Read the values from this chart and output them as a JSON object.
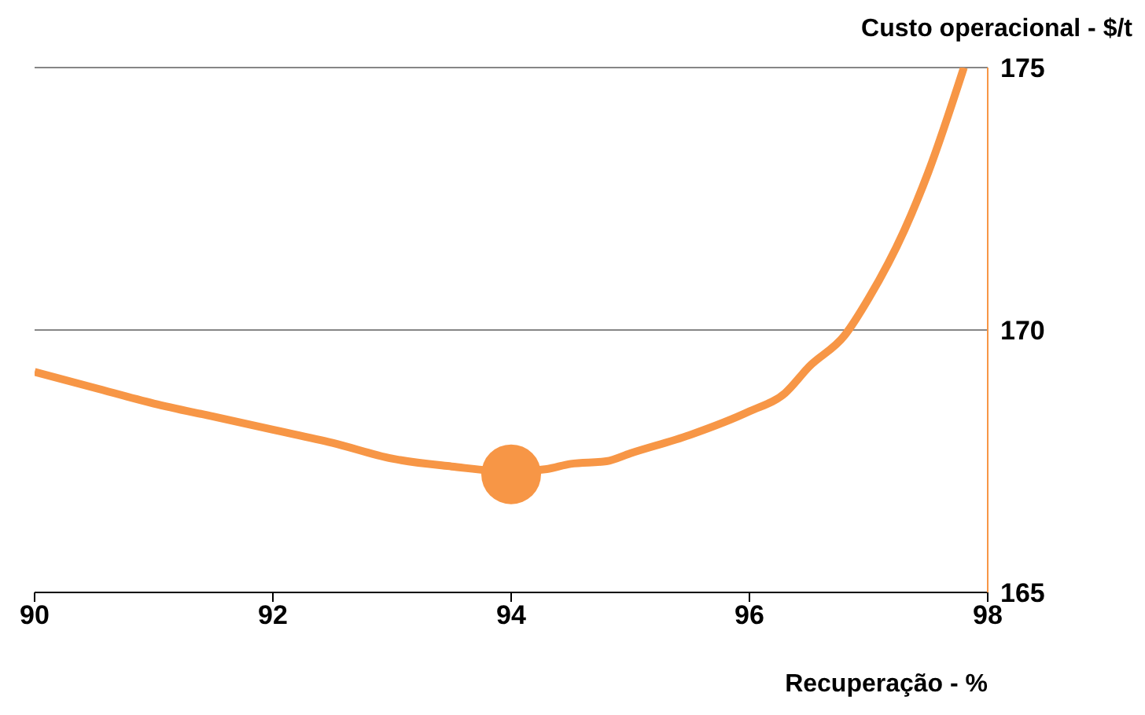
{
  "chart_data": {
    "type": "line",
    "xlabel": "Recuperação - %",
    "ylabel": "Custo operacional - $/t",
    "series": [
      {
        "type": "line",
        "color": "#f79646",
        "x": [
          90,
          90.5,
          91,
          91.5,
          92,
          92.5,
          93,
          93.5,
          94,
          94.3,
          94.5,
          94.8,
          95,
          95.5,
          96,
          96.3,
          96.5,
          96.8,
          97,
          97.3,
          97.5,
          97.8
        ],
        "values": [
          169.2,
          168.9,
          168.6,
          168.35,
          168.1,
          167.85,
          167.55,
          167.4,
          167.3,
          167.35,
          167.45,
          167.5,
          167.65,
          168.0,
          168.45,
          168.8,
          169.3,
          169.9,
          170.6,
          171.9,
          173.0,
          175
        ]
      },
      {
        "type": "scatter",
        "color": "#f79646",
        "marker": "circle",
        "x": [
          94
        ],
        "values": [
          167.25
        ]
      }
    ],
    "xlim": [
      90,
      98
    ],
    "xticks": [
      90,
      92,
      94,
      96,
      98
    ],
    "ylim": [
      165,
      175
    ],
    "yticks": [
      165,
      170,
      175
    ],
    "grid": "y"
  }
}
